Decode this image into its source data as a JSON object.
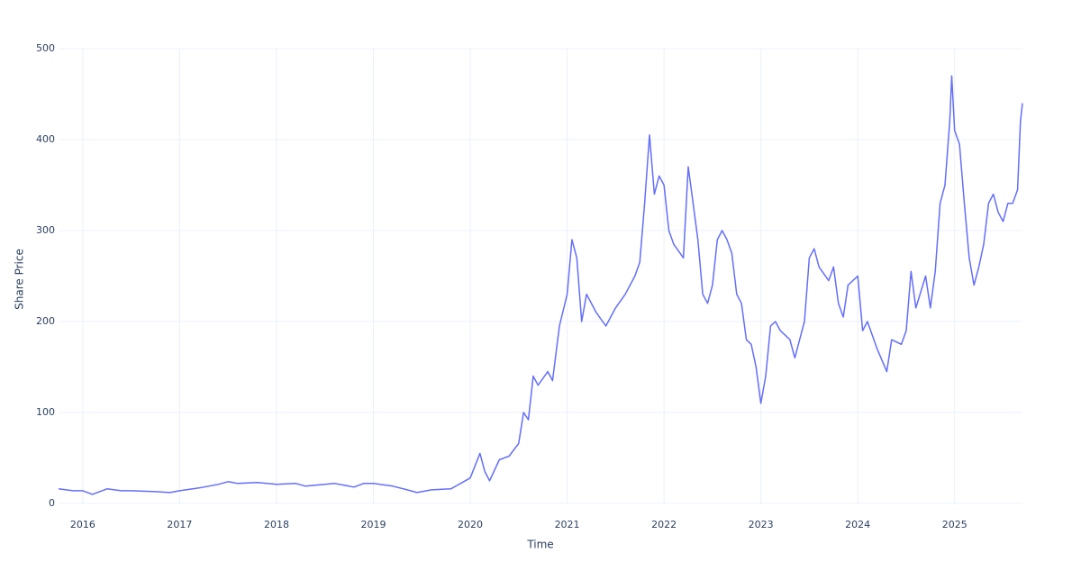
{
  "chart_data": {
    "type": "line",
    "xlabel": "Time",
    "ylabel": "Share Price",
    "xlim": [
      2015.75,
      2025.7
    ],
    "ylim": [
      0,
      500
    ],
    "xticks": [
      2016,
      2017,
      2018,
      2019,
      2020,
      2021,
      2022,
      2023,
      2024,
      2025
    ],
    "yticks": [
      0,
      100,
      200,
      300,
      400,
      500
    ],
    "grid": true,
    "series": [
      {
        "color": "#636efa",
        "x": [
          2015.75,
          2015.9,
          2016.0,
          2016.1,
          2016.25,
          2016.4,
          2016.5,
          2016.75,
          2016.9,
          2017.0,
          2017.2,
          2017.4,
          2017.5,
          2017.6,
          2017.8,
          2018.0,
          2018.2,
          2018.3,
          2018.5,
          2018.6,
          2018.8,
          2018.9,
          2019.0,
          2019.2,
          2019.35,
          2019.45,
          2019.6,
          2019.8,
          2019.9,
          2020.0,
          2020.1,
          2020.15,
          2020.2,
          2020.3,
          2020.4,
          2020.5,
          2020.55,
          2020.6,
          2020.65,
          2020.7,
          2020.8,
          2020.85,
          2020.92,
          2021.0,
          2021.05,
          2021.1,
          2021.15,
          2021.2,
          2021.3,
          2021.4,
          2021.5,
          2021.6,
          2021.7,
          2021.75,
          2021.8,
          2021.85,
          2021.9,
          2021.95,
          2022.0,
          2022.05,
          2022.1,
          2022.2,
          2022.25,
          2022.3,
          2022.35,
          2022.4,
          2022.45,
          2022.5,
          2022.55,
          2022.6,
          2022.65,
          2022.7,
          2022.75,
          2022.8,
          2022.85,
          2022.9,
          2022.95,
          2023.0,
          2023.05,
          2023.1,
          2023.15,
          2023.2,
          2023.3,
          2023.35,
          2023.45,
          2023.5,
          2023.55,
          2023.6,
          2023.7,
          2023.75,
          2023.8,
          2023.85,
          2023.9,
          2024.0,
          2024.05,
          2024.1,
          2024.2,
          2024.3,
          2024.35,
          2024.45,
          2024.5,
          2024.55,
          2024.6,
          2024.7,
          2024.75,
          2024.8,
          2024.85,
          2024.9,
          2024.95,
          2024.97,
          2025.0,
          2025.05,
          2025.1,
          2025.15,
          2025.2,
          2025.25,
          2025.3,
          2025.35,
          2025.4,
          2025.45,
          2025.5,
          2025.55,
          2025.6,
          2025.65,
          2025.68,
          2025.7
        ],
        "values": [
          16,
          14,
          14,
          10,
          16,
          14,
          14,
          13,
          12,
          14,
          17,
          21,
          24,
          22,
          23,
          21,
          22,
          19,
          21,
          22,
          18,
          22,
          22,
          19,
          15,
          12,
          15,
          16,
          22,
          28,
          55,
          35,
          25,
          48,
          52,
          66,
          100,
          92,
          140,
          130,
          145,
          135,
          195,
          230,
          290,
          270,
          200,
          230,
          210,
          195,
          215,
          230,
          250,
          265,
          330,
          405,
          340,
          360,
          350,
          300,
          285,
          270,
          370,
          330,
          290,
          230,
          220,
          240,
          290,
          300,
          290,
          275,
          230,
          220,
          180,
          175,
          150,
          110,
          140,
          195,
          200,
          190,
          180,
          160,
          200,
          270,
          280,
          260,
          245,
          260,
          220,
          205,
          240,
          250,
          190,
          200,
          170,
          145,
          180,
          175,
          190,
          255,
          215,
          250,
          215,
          255,
          330,
          350,
          420,
          470,
          410,
          395,
          330,
          270,
          240,
          260,
          285,
          330,
          340,
          320,
          310,
          330,
          330,
          345,
          420,
          440
        ]
      }
    ]
  }
}
